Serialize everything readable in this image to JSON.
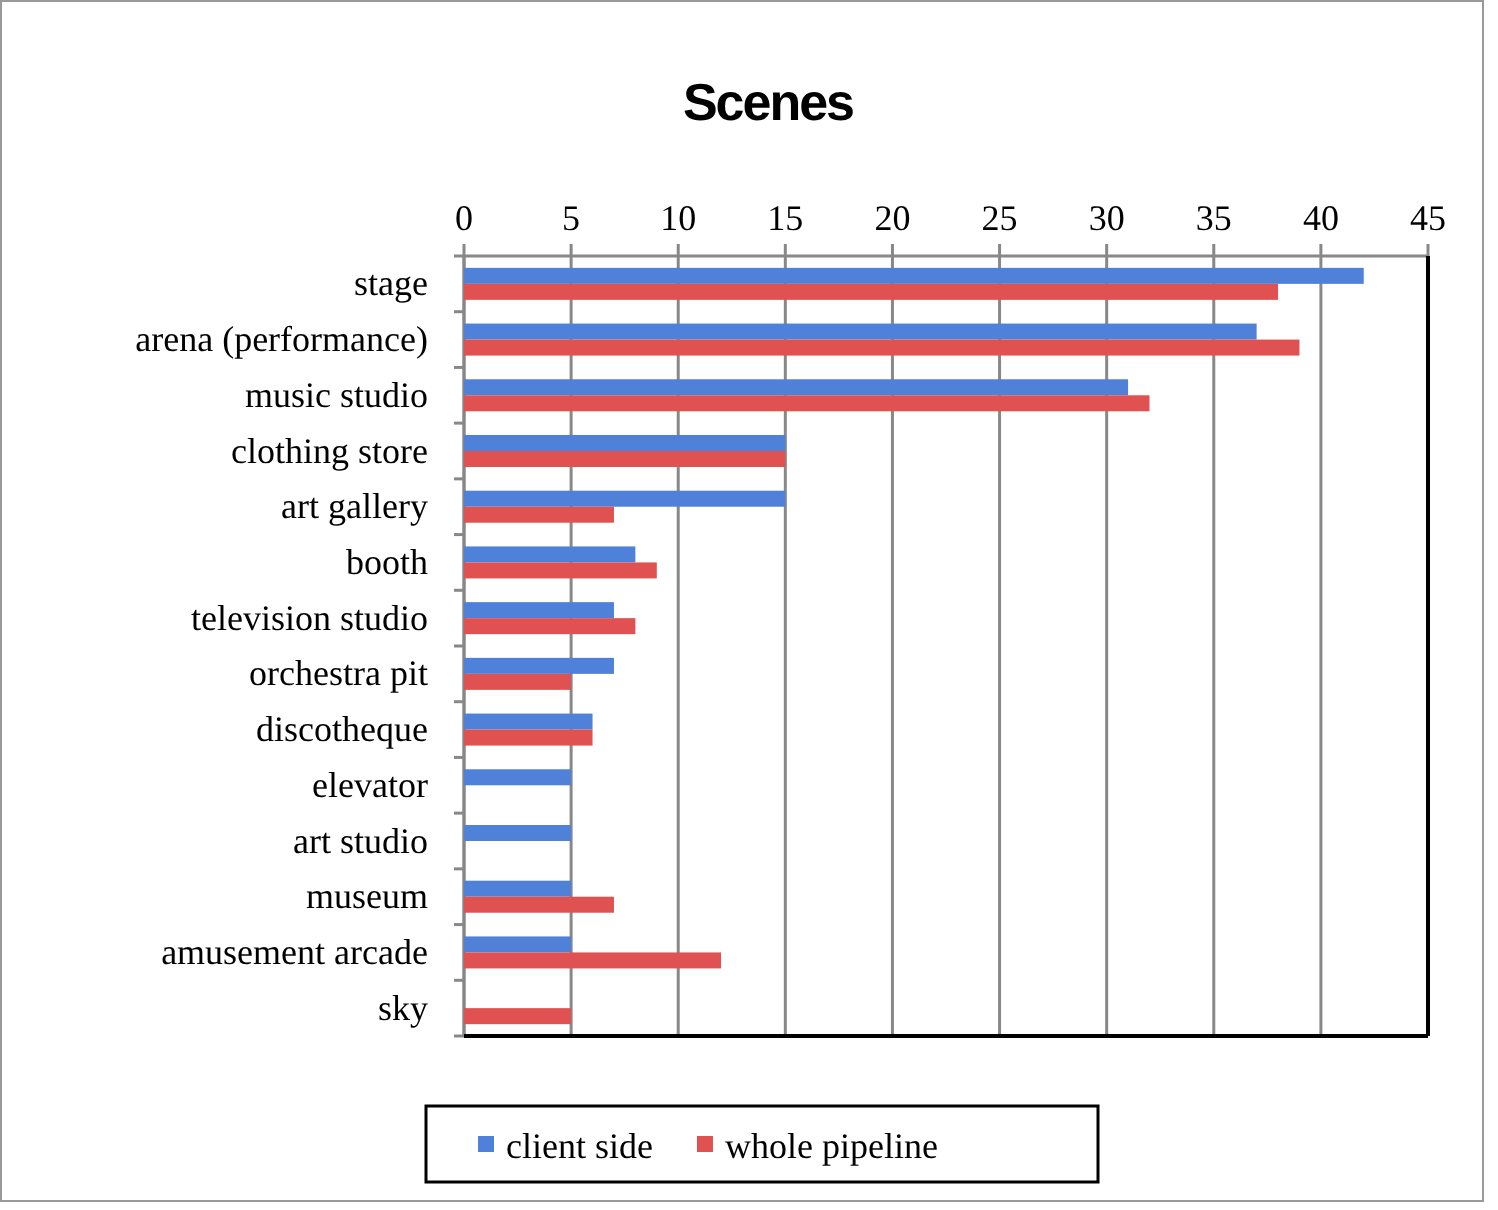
{
  "chart_data": {
    "type": "bar",
    "orientation": "horizontal",
    "title": "Scenes",
    "categories": [
      "stage",
      "arena (performance)",
      "music studio",
      "clothing store",
      "art gallery",
      "booth",
      "television studio",
      "orchestra pit",
      "discotheque",
      "elevator",
      "art studio",
      "museum",
      "amusement arcade",
      "sky"
    ],
    "series": [
      {
        "name": "client side",
        "color": "#4f81d9",
        "values": [
          42,
          37,
          31,
          15,
          15,
          8,
          7,
          7,
          6,
          5,
          5,
          5,
          5,
          0
        ]
      },
      {
        "name": "whole pipeline",
        "color": "#e05252",
        "values": [
          38,
          39,
          32,
          15,
          7,
          9,
          8,
          5,
          6,
          0,
          0,
          7,
          12,
          5
        ]
      }
    ],
    "xlim": [
      0,
      45
    ],
    "xticks": [
      0,
      5,
      10,
      15,
      20,
      25,
      30,
      35,
      40,
      45
    ],
    "grid": "x",
    "legend": "bottom"
  }
}
